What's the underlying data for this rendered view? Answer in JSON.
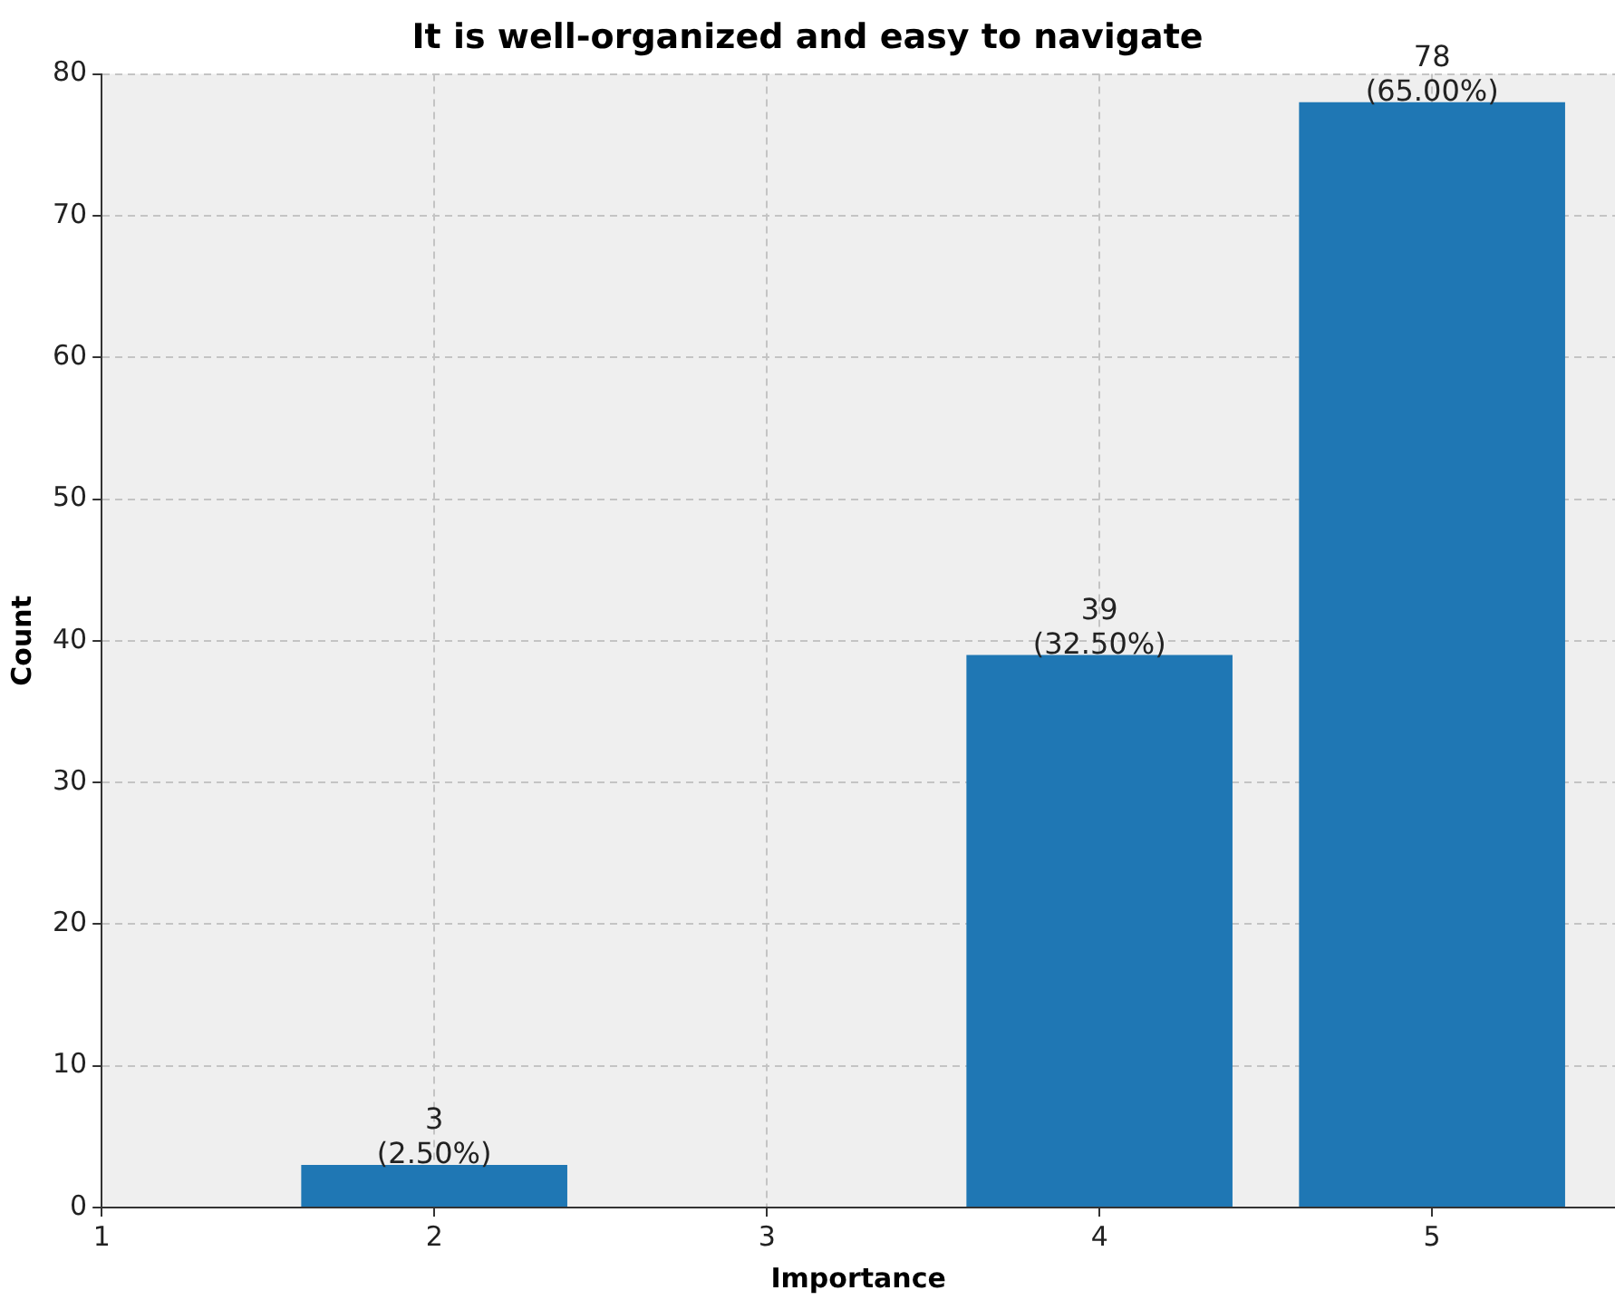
{
  "chart_data": {
    "type": "bar",
    "title": "It is well-organized and easy to navigate",
    "xlabel": "Importance",
    "ylabel": "Count",
    "x": [
      2,
      4,
      5
    ],
    "values": [
      3,
      39,
      78
    ],
    "color": "#1f77b4",
    "value_labels": [
      "3\n(2.50%)",
      "39\n(32.50%)",
      "78\n(65.00%)"
    ],
    "xlim": [
      1,
      5.55
    ],
    "xticks": [
      1,
      2,
      3,
      4,
      5
    ],
    "ylim": [
      0,
      80
    ],
    "yticks": [
      0,
      10,
      20,
      30,
      40,
      50,
      60,
      70,
      80
    ],
    "grid": true,
    "legend": false
  }
}
